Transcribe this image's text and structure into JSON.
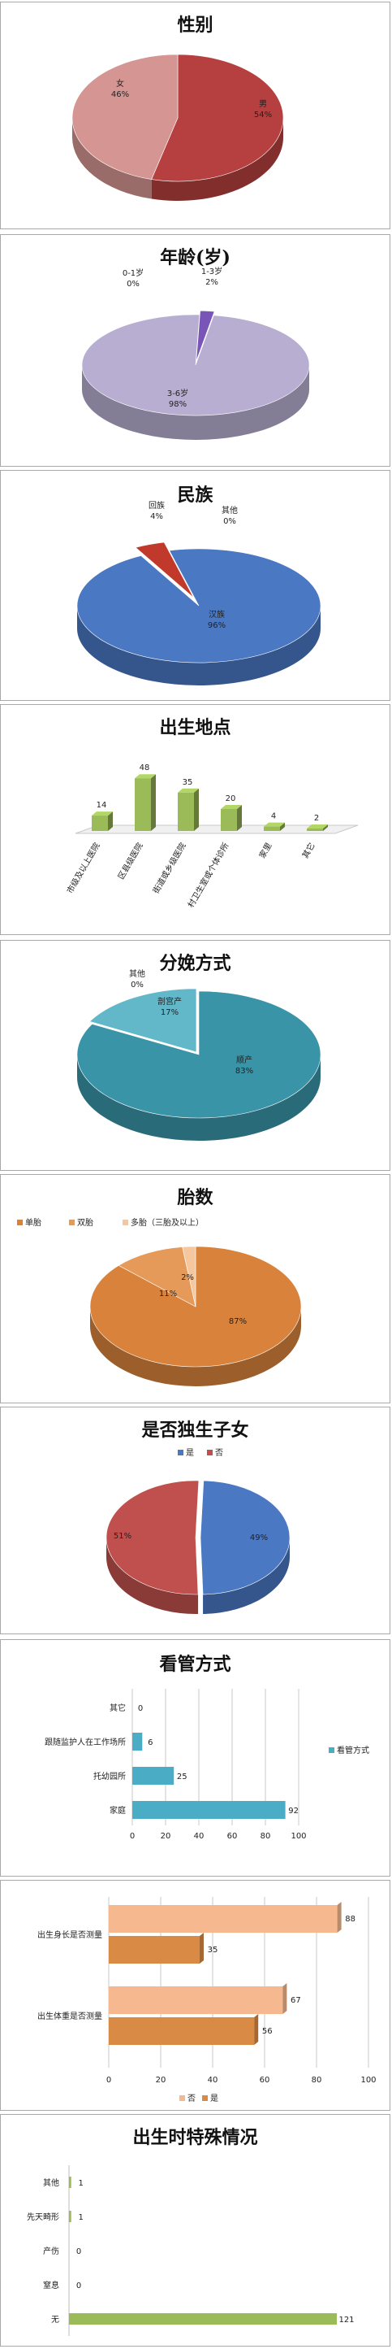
{
  "chart_data": [
    {
      "id": "gender",
      "type": "pie",
      "title": "性别",
      "slices": [
        {
          "label": "男",
          "value": 54,
          "display": "54%",
          "color": "#b5403f"
        },
        {
          "label": "女",
          "value": 46,
          "display": "46%",
          "color": "#d59592"
        }
      ]
    },
    {
      "id": "age",
      "type": "pie",
      "title": "年龄(岁)",
      "slices": [
        {
          "label": "0-1岁",
          "value": 0,
          "display": "0%",
          "color": "#8a6cbf"
        },
        {
          "label": "1-3岁",
          "value": 2,
          "display": "2%",
          "color": "#7a55b8"
        },
        {
          "label": "3-6岁",
          "value": 98,
          "display": "98%",
          "color": "#b8aed1"
        }
      ]
    },
    {
      "id": "ethnicity",
      "type": "pie",
      "title": "民族",
      "slices": [
        {
          "label": "汉族",
          "value": 96,
          "display": "96%",
          "color": "#4a78c2"
        },
        {
          "label": "回族",
          "value": 4,
          "display": "4%",
          "color": "#c0392b"
        },
        {
          "label": "其他",
          "value": 0,
          "display": "0%",
          "color": "#9bbb59"
        }
      ]
    },
    {
      "id": "birthplace",
      "type": "bar",
      "title": "出生地点",
      "categories": [
        "市级及以上医院",
        "区县级医院",
        "街道或乡级医院",
        "村卫生室或个体诊所",
        "家里",
        "其它"
      ],
      "values": [
        14,
        48,
        35,
        20,
        4,
        2
      ],
      "color": "#9bbb59"
    },
    {
      "id": "delivery",
      "type": "pie",
      "title": "分娩方式",
      "slices": [
        {
          "label": "顺产",
          "value": 83,
          "display": "83%",
          "color": "#3a94a8"
        },
        {
          "label": "剖宫产",
          "value": 17,
          "display": "17%",
          "color": "#62b7c9"
        },
        {
          "label": "其他",
          "value": 0,
          "display": "0%",
          "color": "#2d7a8a"
        }
      ]
    },
    {
      "id": "fetus",
      "type": "pie",
      "title": "胎数",
      "legend": [
        "单胎",
        "双胎",
        "多胎（三胎及以上）"
      ],
      "slices": [
        {
          "label": "单胎",
          "value": 87,
          "display": "87%",
          "color": "#d9823b"
        },
        {
          "label": "双胎",
          "value": 11,
          "display": "11%",
          "color": "#e69a5a"
        },
        {
          "label": "多胎（三胎及以上）",
          "value": 2,
          "display": "2%",
          "color": "#f5c79e"
        }
      ]
    },
    {
      "id": "onlychild",
      "type": "pie",
      "title": "是否独生子女",
      "legend": [
        "是",
        "否"
      ],
      "slices": [
        {
          "label": "是",
          "value": 49,
          "display": "49%",
          "color": "#4a78c2"
        },
        {
          "label": "否",
          "value": 51,
          "display": "51%",
          "color": "#c0504d"
        }
      ]
    },
    {
      "id": "care",
      "type": "bar",
      "title": "看管方式",
      "categories": [
        "其它",
        "跟随监护人在工作场所",
        "托幼园所",
        "家庭"
      ],
      "values": [
        0,
        6,
        25,
        92
      ],
      "xlim": [
        0,
        100
      ],
      "xticks": [
        0,
        20,
        40,
        60,
        80,
        100
      ],
      "series_name": "看管方式",
      "color": "#4bacc6"
    },
    {
      "id": "measure",
      "type": "bar",
      "title": "",
      "categories": [
        "出生身长是否测量",
        "出生体重是否测量"
      ],
      "series": [
        {
          "name": "否",
          "values": [
            88,
            67
          ],
          "color": "#f6b98f"
        },
        {
          "name": "是",
          "values": [
            35,
            56
          ],
          "color": "#d98a45"
        }
      ],
      "xlim": [
        0,
        100
      ],
      "xticks": [
        0,
        20,
        40,
        60,
        80,
        100
      ]
    },
    {
      "id": "special",
      "type": "bar",
      "title": "出生时特殊情况",
      "categories": [
        "其他",
        "先天畸形",
        "产伤",
        "窒息",
        "无"
      ],
      "values": [
        1,
        1,
        0,
        0,
        121
      ],
      "color": "#9bbb59"
    }
  ]
}
